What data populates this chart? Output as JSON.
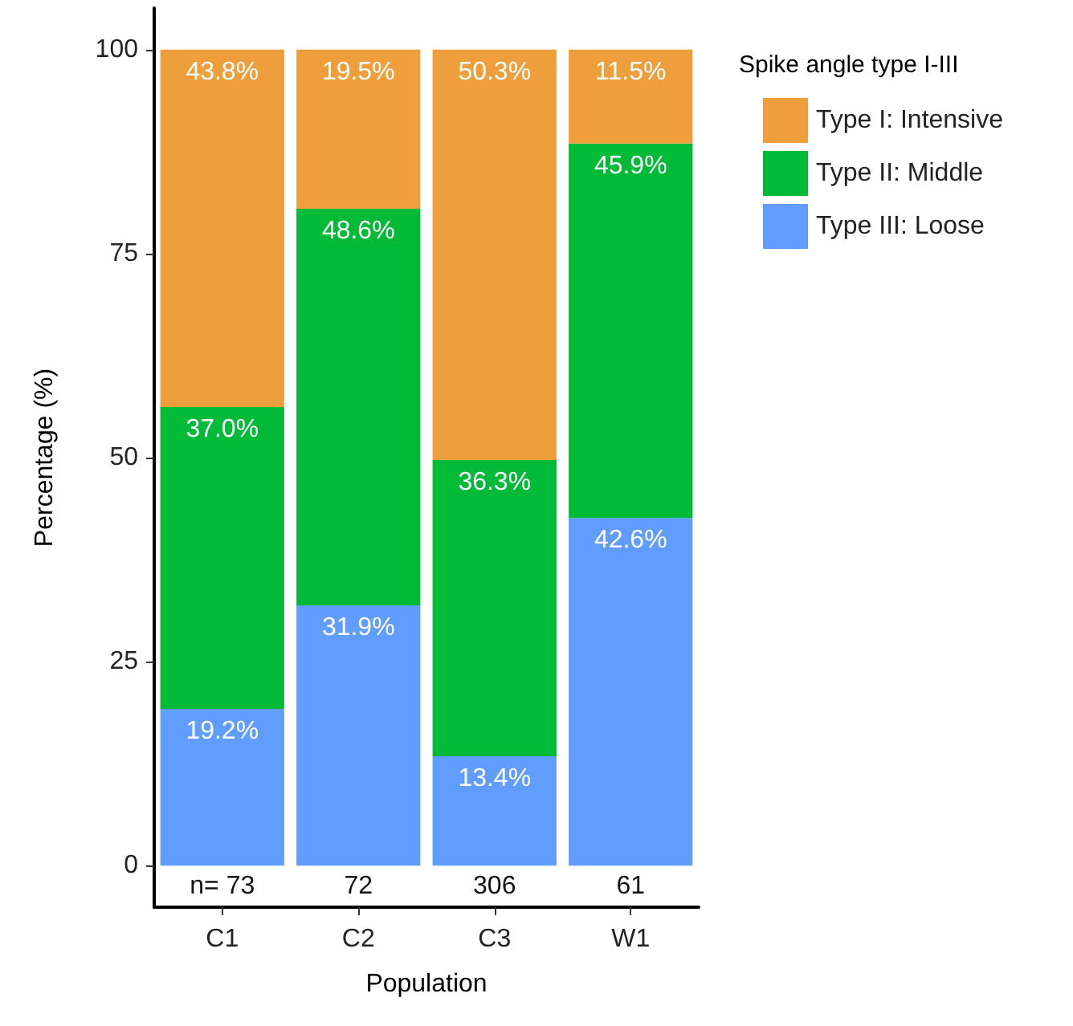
{
  "chart_data": {
    "type": "bar",
    "stacked": true,
    "xlabel": "Population",
    "ylabel": "Percentage (%)",
    "legend_title": "Spike angle type I-III",
    "legend": "top right",
    "grid": false,
    "categories": [
      "C1",
      "C2",
      "C3",
      "W1"
    ],
    "ylim": [
      -5.1,
      105.1
    ],
    "yticks": [
      0,
      25,
      50,
      75,
      100
    ],
    "series": [
      {
        "name": "Type III: Loose",
        "color": "#619cff",
        "values": [
          19.2,
          31.9,
          13.4,
          42.6
        ],
        "value_labels": [
          "19.2%",
          "31.9%",
          "13.4%",
          "42.6%"
        ]
      },
      {
        "name": "Type II: Middle",
        "color": "#00ba38",
        "values": [
          37.0,
          48.6,
          36.3,
          45.9
        ],
        "value_labels": [
          "37.0%",
          "48.6%",
          "36.3%",
          "45.9%"
        ]
      },
      {
        "name": "Type I: Intensive",
        "color": "#ee9e3a",
        "values": [
          43.8,
          19.5,
          50.3,
          11.5
        ],
        "value_labels": [
          "43.8%",
          "19.5%",
          "50.3%",
          "11.5%"
        ]
      }
    ],
    "annotations": [
      "n= 73",
      "72",
      "306",
      "61"
    ]
  }
}
